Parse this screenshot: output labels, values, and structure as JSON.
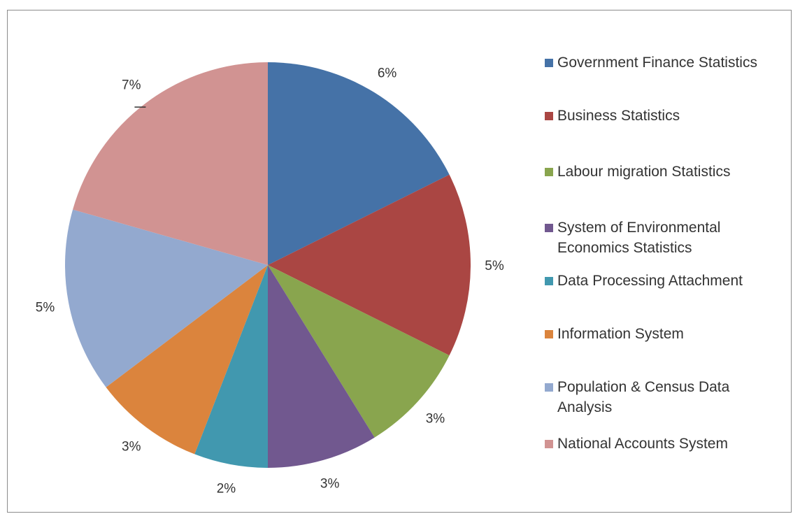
{
  "chart_data": {
    "type": "pie",
    "categories": [
      "Government Finance Statistics",
      "Business Statistics",
      "Labour migration Statistics",
      "System of Environmental Economics Statistics",
      "Data Processing Attachment",
      "Information System",
      "Population & Census Data Analysis",
      "National Accounts System"
    ],
    "values": [
      6,
      5,
      3,
      3,
      2,
      3,
      5,
      7
    ],
    "data_labels": [
      "6%",
      "5%",
      "3%",
      "3%",
      "2%",
      "3%",
      "5%",
      "7%"
    ],
    "colors": [
      "#4572a7",
      "#aa4643",
      "#89a54e",
      "#71588f",
      "#4198af",
      "#db843d",
      "#93a9cf",
      "#d19392"
    ],
    "legend_position": "right"
  },
  "legend": {
    "items": [
      {
        "label": "Government Finance Statistics",
        "color": "#4572a7"
      },
      {
        "label": "Business Statistics",
        "color": "#aa4643"
      },
      {
        "label": "Labour migration Statistics",
        "color": "#89a54e"
      },
      {
        "label": "System of Environmental Economics Statistics",
        "color": "#71588f"
      },
      {
        "label": "Data Processing Attachment",
        "color": "#4198af"
      },
      {
        "label": "Information System",
        "color": "#db843d"
      },
      {
        "label": "Population & Census Data Analysis",
        "color": "#93a9cf"
      },
      {
        "label": "National Accounts System",
        "color": "#d19392"
      }
    ]
  }
}
